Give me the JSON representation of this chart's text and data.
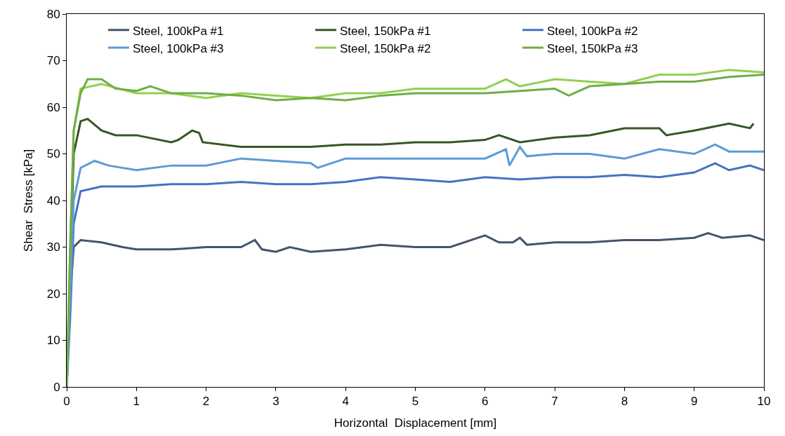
{
  "chart_data": {
    "type": "line",
    "xlabel": "Horizontal  Displacement [mm]",
    "ylabel": "Shear  Stress [kPa]",
    "xlim": [
      0,
      10
    ],
    "xticks": [
      0,
      1,
      2,
      3,
      4,
      5,
      6,
      7,
      8,
      9,
      10
    ],
    "ylim": [
      0,
      80
    ],
    "yticks": [
      0,
      10,
      20,
      30,
      40,
      50,
      60,
      70,
      80
    ],
    "legend": "top",
    "marker": "none",
    "line_style": "solid",
    "series": [
      {
        "name": "Steel, 100kPa #1",
        "color": "#44546a",
        "x": [
          0,
          0.05,
          0.1,
          0.2,
          0.5,
          0.8,
          1,
          1.5,
          2,
          2.5,
          2.7,
          2.8,
          3,
          3.2,
          3.5,
          4,
          4.5,
          5,
          5.5,
          6,
          6.2,
          6.4,
          6.5,
          6.6,
          7,
          7.5,
          8,
          8.5,
          9,
          9.2,
          9.4,
          9.8,
          10
        ],
        "values": [
          0,
          20,
          30,
          31.5,
          31,
          30,
          29.5,
          29.5,
          30,
          30,
          31.5,
          29.5,
          29,
          30,
          29,
          29.5,
          30.5,
          30,
          30,
          32.5,
          31,
          31,
          32,
          30.5,
          31,
          31,
          31.5,
          31.5,
          32,
          33,
          32,
          32.5,
          31.5
        ]
      },
      {
        "name": "Steel, 150kPa #1",
        "color": "#375623",
        "x": [
          0,
          0.05,
          0.1,
          0.2,
          0.3,
          0.5,
          0.7,
          1,
          1.5,
          1.6,
          1.8,
          1.9,
          1.95,
          2.5,
          3,
          3.5,
          4,
          4.5,
          5,
          5.5,
          6,
          6.2,
          6.5,
          7,
          7.5,
          8,
          8.5,
          8.6,
          9,
          9.5,
          9.8,
          9.85
        ],
        "values": [
          0,
          25,
          50,
          57,
          57.5,
          55,
          54,
          54,
          52.5,
          53,
          55,
          54.5,
          52.5,
          51.5,
          51.5,
          51.5,
          52,
          52,
          52.5,
          52.5,
          53,
          54,
          52.5,
          53.5,
          54,
          55.5,
          55.5,
          54,
          55,
          56.5,
          55.5,
          56.5
        ]
      },
      {
        "name": "Steel, 100kPa #2",
        "color": "#4472c4",
        "x": [
          0,
          0.05,
          0.1,
          0.2,
          0.5,
          1,
          1.5,
          2,
          2.5,
          3,
          3.5,
          4,
          4.5,
          5,
          5.5,
          6,
          6.5,
          7,
          7.5,
          8,
          8.5,
          9,
          9.3,
          9.5,
          9.8,
          10
        ],
        "values": [
          0,
          15,
          35,
          42,
          43,
          43,
          43.5,
          43.5,
          44,
          43.5,
          43.5,
          44,
          45,
          44.5,
          44,
          45,
          44.5,
          45,
          45,
          45.5,
          45,
          46,
          48,
          46.5,
          47.5,
          46.5
        ]
      },
      {
        "name": "Steel, 100kPa #3",
        "color": "#5b9bd5",
        "x": [
          0,
          0.05,
          0.1,
          0.2,
          0.4,
          0.6,
          1,
          1.5,
          2,
          2.5,
          3,
          3.5,
          3.6,
          4,
          4.5,
          5,
          5.5,
          6,
          6.3,
          6.35,
          6.5,
          6.6,
          7,
          7.5,
          8,
          8.5,
          9,
          9.3,
          9.5,
          10
        ],
        "values": [
          0,
          20,
          40,
          47,
          48.5,
          47.5,
          46.5,
          47.5,
          47.5,
          49,
          48.5,
          48,
          47,
          49,
          49,
          49,
          49,
          49,
          51,
          47.5,
          51.5,
          49.5,
          50,
          50,
          49,
          51,
          50,
          52,
          50.5,
          50.5
        ]
      },
      {
        "name": "Steel, 150kPa #2",
        "color": "#92d050",
        "x": [
          0,
          0.05,
          0.1,
          0.2,
          0.5,
          1,
          1.5,
          2,
          2.5,
          3,
          3.5,
          4,
          4.5,
          5,
          5.5,
          6,
          6.3,
          6.5,
          7,
          7.5,
          8,
          8.5,
          9,
          9.5,
          10
        ],
        "values": [
          0,
          30,
          55,
          64,
          65,
          63,
          63,
          62,
          63,
          62.5,
          62,
          63,
          63,
          64,
          64,
          64,
          66,
          64.5,
          66,
          65.5,
          65,
          67,
          67,
          68,
          67.5
        ]
      },
      {
        "name": "Steel, 150kPa #3",
        "color": "#70ad47",
        "x": [
          0,
          0.05,
          0.1,
          0.2,
          0.3,
          0.5,
          0.7,
          1,
          1.2,
          1.5,
          2,
          2.5,
          3,
          3.5,
          4,
          4.5,
          5,
          5.5,
          6,
          6.5,
          7,
          7.2,
          7.5,
          8,
          8.5,
          9,
          9.5,
          10
        ],
        "values": [
          0,
          30,
          55,
          63,
          66,
          66,
          64,
          63.5,
          64.5,
          63,
          63,
          62.5,
          61.5,
          62,
          61.5,
          62.5,
          63,
          63,
          63,
          63.5,
          64,
          62.5,
          64.5,
          65,
          65.5,
          65.5,
          66.5,
          67
        ]
      }
    ]
  }
}
